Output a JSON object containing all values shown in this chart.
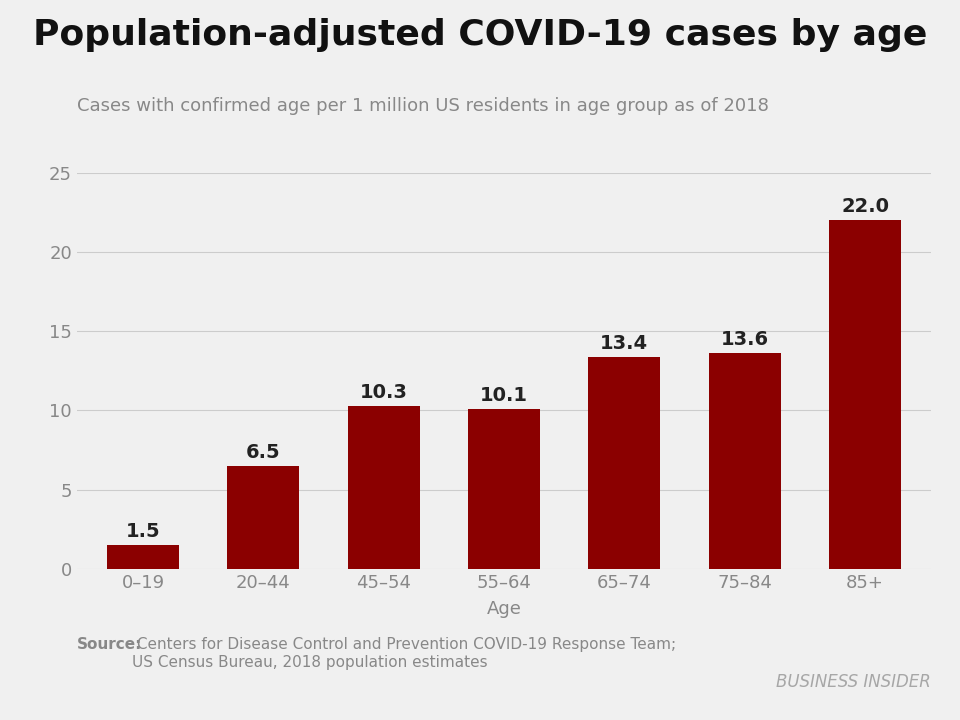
{
  "title": "Population-adjusted COVID-19 cases by age",
  "subtitle": "Cases with confirmed age per 1 million US residents in age group as of 2018",
  "categories": [
    "0–19",
    "20–44",
    "45–54",
    "55–64",
    "65–74",
    "75–84",
    "85+"
  ],
  "values": [
    1.5,
    6.5,
    10.3,
    10.1,
    13.4,
    13.6,
    22.0
  ],
  "bar_color": "#8B0000",
  "xlabel": "Age",
  "ylim": [
    0,
    25
  ],
  "yticks": [
    0,
    5,
    10,
    15,
    20,
    25
  ],
  "source_bold": "Source:",
  "source_text": " Centers for Disease Control and Prevention COVID-19 Response Team;\nUS Census Bureau, 2018 population estimates",
  "watermark": "BUSINESS INSIDER",
  "title_fontsize": 26,
  "subtitle_fontsize": 13,
  "xlabel_fontsize": 13,
  "tick_fontsize": 13,
  "bar_label_fontsize": 14,
  "source_fontsize": 11,
  "watermark_fontsize": 12,
  "background_color": "#f0f0f0",
  "grid_color": "#cccccc",
  "text_color": "#888888",
  "label_color": "#222222"
}
